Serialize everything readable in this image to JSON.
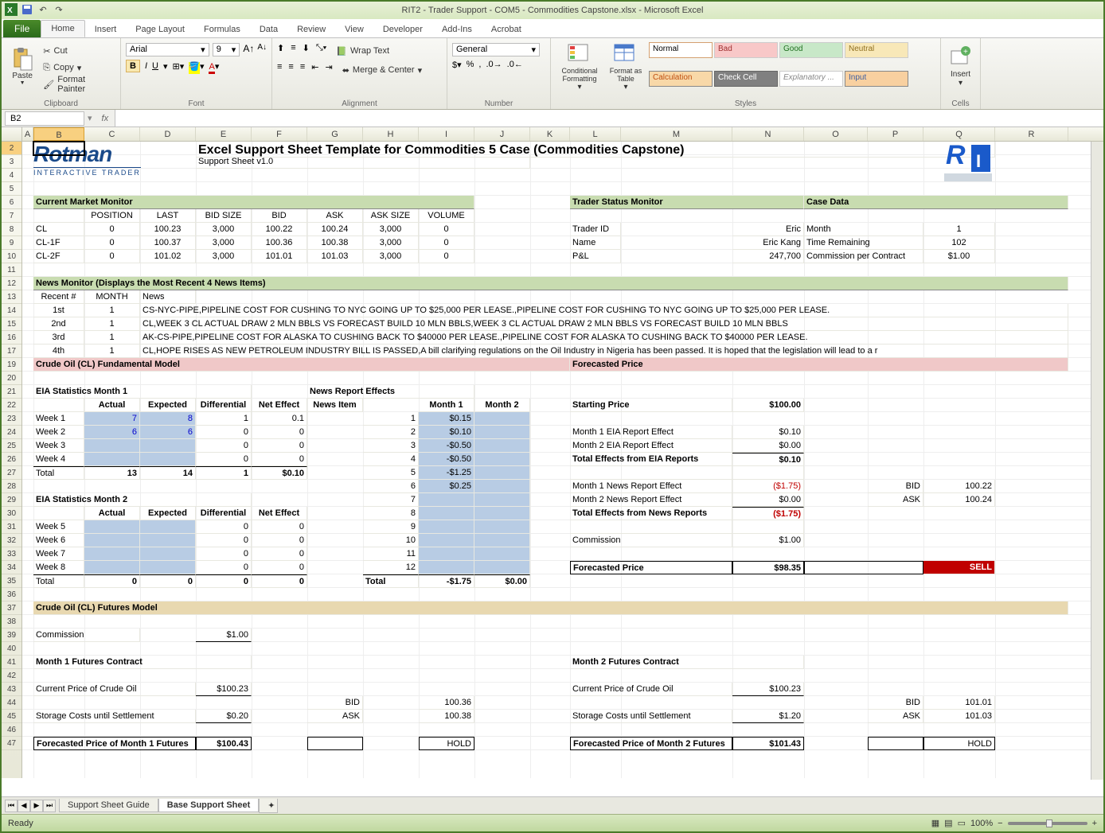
{
  "window": {
    "title": "RIT2 - Trader Support - COM5 - Commodities Capstone.xlsx - Microsoft Excel"
  },
  "tabs": [
    "File",
    "Home",
    "Insert",
    "Page Layout",
    "Formulas",
    "Data",
    "Review",
    "View",
    "Developer",
    "Add-Ins",
    "Acrobat"
  ],
  "active_tab": "Home",
  "ribbon": {
    "clipboard": {
      "paste": "Paste",
      "cut": "Cut",
      "copy": "Copy",
      "fp": "Format Painter",
      "label": "Clipboard"
    },
    "font": {
      "name": "Arial",
      "size": "9",
      "label": "Font"
    },
    "alignment": {
      "wrap": "Wrap Text",
      "merge": "Merge & Center",
      "label": "Alignment"
    },
    "number": {
      "format": "General",
      "label": "Number"
    },
    "styles": {
      "cf": "Conditional Formatting",
      "fat": "Format as Table",
      "cells": [
        {
          "t": "Normal",
          "bg": "#ffffff",
          "fg": "#000",
          "bd": "#d4a070"
        },
        {
          "t": "Bad",
          "bg": "#f8c8c8",
          "fg": "#a03030",
          "bd": "#ccc"
        },
        {
          "t": "Good",
          "bg": "#c8e8c8",
          "fg": "#207020",
          "bd": "#ccc"
        },
        {
          "t": "Neutral",
          "bg": "#f8e8b8",
          "fg": "#907020",
          "bd": "#ccc"
        },
        {
          "t": "Calculation",
          "bg": "#f8d8a8",
          "fg": "#c05010",
          "bd": "#888"
        },
        {
          "t": "Check Cell",
          "bg": "#808080",
          "fg": "#ffffff",
          "bd": "#666"
        },
        {
          "t": "Explanatory ...",
          "bg": "#ffffff",
          "fg": "#888",
          "bd": "#ccc"
        },
        {
          "t": "Input",
          "bg": "#f8d0a0",
          "fg": "#4060a0",
          "bd": "#888"
        }
      ],
      "label": "Styles"
    },
    "cells_grp": {
      "insert": "Insert",
      "label": "Cells"
    }
  },
  "name_box": "B2",
  "columns": {
    "letters": [
      "A",
      "B",
      "C",
      "D",
      "E",
      "F",
      "G",
      "H",
      "I",
      "J",
      "K",
      "L",
      "M",
      "N",
      "O",
      "P",
      "Q",
      "R"
    ],
    "widths": [
      14,
      64,
      70,
      70,
      70,
      70,
      70,
      70,
      70,
      70,
      50,
      64,
      140,
      90,
      80,
      70,
      90,
      92
    ]
  },
  "row_count": 47,
  "selected": {
    "col": "B",
    "row": 2
  },
  "content": {
    "title": "Excel Support Sheet Template for Commodities 5 Case (Commodities Capstone)",
    "subtitle": "Support Sheet v1.0",
    "market_monitor": {
      "header": "Current Market Monitor",
      "cols": [
        "",
        "POSITION",
        "LAST",
        "BID SIZE",
        "BID",
        "ASK",
        "ASK SIZE",
        "VOLUME"
      ],
      "rows": [
        [
          "CL",
          "0",
          "100.23",
          "3,000",
          "100.22",
          "100.24",
          "3,000",
          "0"
        ],
        [
          "CL-1F",
          "0",
          "100.37",
          "3,000",
          "100.36",
          "100.38",
          "3,000",
          "0"
        ],
        [
          "CL-2F",
          "0",
          "101.02",
          "3,000",
          "101.01",
          "101.03",
          "3,000",
          "0"
        ]
      ]
    },
    "trader_status": {
      "header": "Trader Status Monitor",
      "rows": [
        [
          "Trader ID",
          "Eric"
        ],
        [
          "Name",
          "Eric Kang"
        ],
        [
          "P&L",
          "247,700"
        ]
      ]
    },
    "case_data": {
      "header": "Case Data",
      "rows": [
        [
          "Month",
          "1"
        ],
        [
          "Time Remaining",
          "102"
        ],
        [
          "Commission per Contract",
          "$1.00"
        ]
      ]
    },
    "news": {
      "header": "News Monitor (Displays the Most Recent 4 News Items)",
      "cols": [
        "Recent #",
        "MONTH",
        "News"
      ],
      "rows": [
        [
          "1st",
          "1",
          "CS-NYC-PIPE,PIPELINE COST FOR CUSHING TO NYC GOING UP TO $25,000 PER LEASE.,PIPELINE COST FOR CUSHING TO NYC GOING UP TO $25,000 PER LEASE."
        ],
        [
          "2nd",
          "1",
          "CL,WEEK 3 CL ACTUAL DRAW 2 MLN BBLS VS FORECAST BUILD 10 MLN BBLS,WEEK 3 CL ACTUAL DRAW 2 MLN BBLS VS FORECAST BUILD 10 MLN BBLS"
        ],
        [
          "3rd",
          "1",
          "AK-CS-PIPE,PIPELINE COST FOR ALASKA TO CUSHING BACK TO $40000 PER LEASE.,PIPELINE COST FOR ALASKA TO CUSHING BACK TO $40000 PER LEASE."
        ],
        [
          "4th",
          "1",
          "CL,HOPE RISES AS NEW PETROLEUM INDUSTRY BILL IS PASSED,A bill clarifying regulations on the Oil Industry in Nigeria has been passed. It is hoped that the legislation will lead to a r"
        ]
      ]
    },
    "fund_model_header": "Crude Oil (CL) Fundamental Model",
    "forecasted_header": "Forecasted Price",
    "eia1": {
      "title": "EIA Statistics Month 1",
      "cols": [
        "",
        "Actual",
        "Expected",
        "Differential",
        "Net Effect"
      ],
      "rows": [
        [
          "Week 1",
          "7",
          "8",
          "1",
          "0.1"
        ],
        [
          "Week 2",
          "6",
          "6",
          "0",
          "0"
        ],
        [
          "Week 3",
          "",
          "",
          "0",
          "0"
        ],
        [
          "Week 4",
          "",
          "",
          "0",
          "0"
        ]
      ],
      "total": [
        "Total",
        "13",
        "14",
        "1",
        "$0.10"
      ]
    },
    "news_effects": {
      "title": "News Report Effects",
      "cols": [
        "News Item",
        "Month 1",
        "Month 2"
      ],
      "rows": [
        [
          "1",
          "$0.15",
          ""
        ],
        [
          "2",
          "$0.10",
          ""
        ],
        [
          "3",
          "-$0.50",
          ""
        ],
        [
          "4",
          "-$0.50",
          ""
        ],
        [
          "5",
          "-$1.25",
          ""
        ],
        [
          "6",
          "$0.25",
          ""
        ],
        [
          "7",
          "",
          ""
        ],
        [
          "8",
          "",
          ""
        ],
        [
          "9",
          "",
          ""
        ],
        [
          "10",
          "",
          ""
        ],
        [
          "11",
          "",
          ""
        ],
        [
          "12",
          "",
          ""
        ]
      ],
      "total": [
        "Total",
        "-$1.75",
        "$0.00"
      ]
    },
    "eia2": {
      "title": "EIA Statistics Month 2",
      "cols": [
        "",
        "Actual",
        "Expected",
        "Differential",
        "Net Effect"
      ],
      "rows": [
        [
          "Week 5",
          "",
          "",
          "0",
          "0"
        ],
        [
          "Week 6",
          "",
          "",
          "0",
          "0"
        ],
        [
          "Week 7",
          "",
          "",
          "0",
          "0"
        ],
        [
          "Week 8",
          "",
          "",
          "0",
          "0"
        ]
      ],
      "total": [
        "Total",
        "0",
        "0",
        "0",
        "0"
      ]
    },
    "forecast_block": {
      "starting": [
        "Starting Price",
        "$100.00"
      ],
      "lines": [
        [
          "Month 1 EIA Report Effect",
          "$0.10",
          "",
          ""
        ],
        [
          "Month 2 EIA Report Effect",
          "$0.00",
          "",
          ""
        ],
        [
          "Total Effects from EIA Reports",
          "$0.10",
          "",
          "",
          true
        ],
        [
          "",
          "",
          "",
          ""
        ],
        [
          "Month 1 News Report Effect",
          "($1.75)",
          "BID",
          "100.22"
        ],
        [
          "Month 2 News Report Effect",
          "$0.00",
          "ASK",
          "100.24"
        ],
        [
          "Total Effects from News Reports",
          "($1.75)",
          "",
          "",
          true
        ],
        [
          "",
          "",
          "",
          ""
        ],
        [
          "Commission",
          "$1.00",
          "",
          ""
        ]
      ],
      "final": [
        "Forecasted Price",
        "$98.35",
        "SELL"
      ]
    },
    "futures_header": "Crude Oil (CL) Futures Model",
    "commission": [
      "Commission",
      "$1.00"
    ],
    "fut1": {
      "title": "Month 1 Futures Contract",
      "rows": [
        [
          "Current Price of Crude Oil",
          "$100.23",
          "",
          ""
        ],
        [
          "",
          "",
          "BID",
          "100.36"
        ],
        [
          "Storage Costs until Settlement",
          "$0.20",
          "ASK",
          "100.38"
        ]
      ],
      "final": [
        "Forecasted Price of Month 1 Futures",
        "$100.43",
        "HOLD"
      ]
    },
    "fut2": {
      "title": "Month 2 Futures Contract",
      "rows": [
        [
          "Current Price of Crude Oil",
          "$100.23",
          "",
          ""
        ],
        [
          "",
          "",
          "BID",
          "101.01"
        ],
        [
          "Storage Costs until Settlement",
          "$1.20",
          "ASK",
          "101.03"
        ]
      ],
      "final": [
        "Forecasted Price of Month 2 Futures",
        "$101.43",
        "HOLD"
      ]
    }
  },
  "sheet_tabs": [
    "Support Sheet Guide",
    "Base Support Sheet"
  ],
  "active_sheet": 1,
  "status": {
    "ready": "Ready",
    "zoom": "100%"
  }
}
